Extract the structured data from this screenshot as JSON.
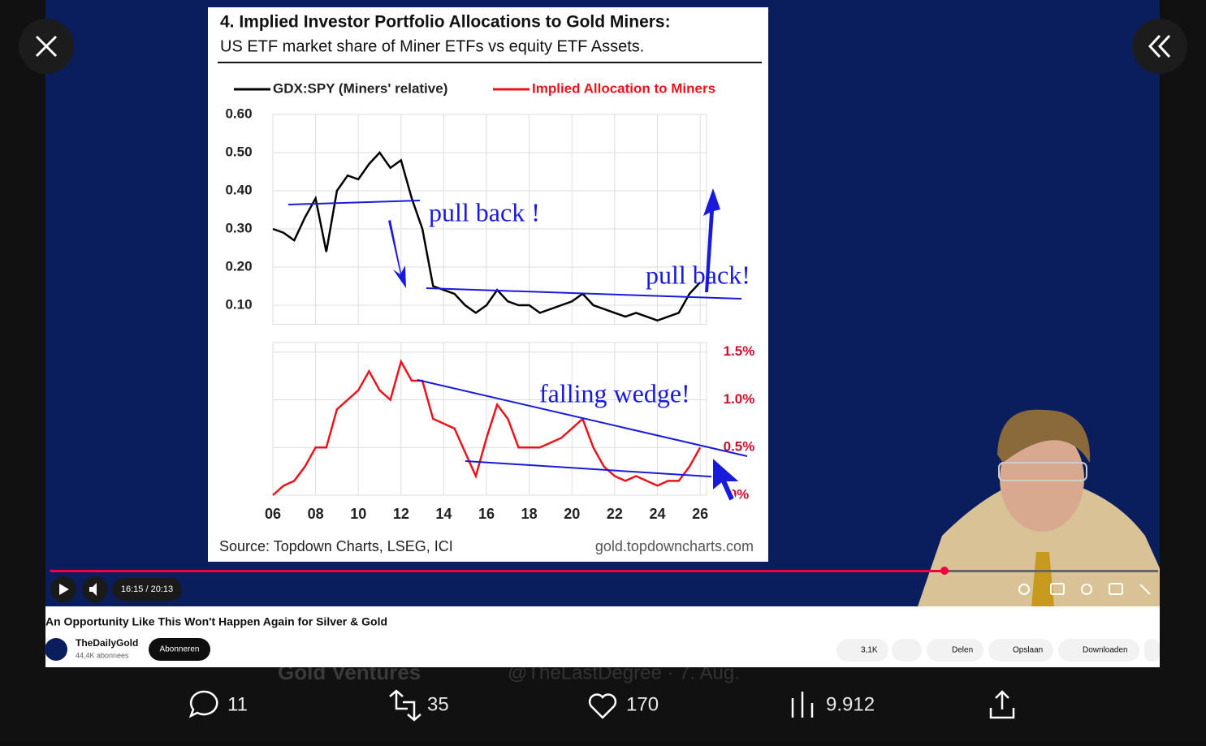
{
  "chart_data": [
    {
      "type": "line",
      "title": "4. Implied Investor Portfolio Allocations to Gold Miners:",
      "subtitle": "US ETF market share of Miner ETFs vs equity ETF Assets.",
      "source": "Source: Topdown Charts, LSEG, ICI",
      "credit": "gold.topdowncharts.com",
      "annotations": [
        "pull back !",
        "pull back!",
        "falling wedge!"
      ],
      "x": [
        2006,
        2006.5,
        2007,
        2007.5,
        2008,
        2008.5,
        2009,
        2009.5,
        2010,
        2010.5,
        2011,
        2011.5,
        2012,
        2012.5,
        2013,
        2013.5,
        2014,
        2014.5,
        2015,
        2015.5,
        2016,
        2016.5,
        2017,
        2017.5,
        2018,
        2018.5,
        2019,
        2019.5,
        2020,
        2020.5,
        2021,
        2021.5,
        2022,
        2022.5,
        2023,
        2023.5,
        2024,
        2024.5,
        2025,
        2025.5,
        2026
      ],
      "series": [
        {
          "name": "GDX:SPY (Miners' relative)",
          "color": "#000000",
          "values": [
            0.3,
            0.29,
            0.27,
            0.33,
            0.38,
            0.24,
            0.4,
            0.44,
            0.43,
            0.47,
            0.5,
            0.46,
            0.48,
            0.38,
            0.3,
            0.15,
            0.14,
            0.13,
            0.1,
            0.08,
            0.1,
            0.14,
            0.11,
            0.1,
            0.1,
            0.08,
            0.09,
            0.1,
            0.11,
            0.13,
            0.1,
            0.09,
            0.08,
            0.07,
            0.08,
            0.07,
            0.06,
            0.07,
            0.08,
            0.13,
            0.16
          ]
        }
      ],
      "xlim": [
        2006,
        2026.3
      ],
      "xticks": [
        2006,
        2008,
        2010,
        2012,
        2014,
        2016,
        2018,
        2020,
        2022,
        2024,
        2026
      ],
      "ylim": [
        0.05,
        0.6
      ],
      "yticks": [
        {
          "value": 0.1,
          "label": "0.10"
        },
        {
          "value": 0.2,
          "label": "0.20"
        },
        {
          "value": 0.3,
          "label": "0.30"
        },
        {
          "value": 0.4,
          "label": "0.40"
        },
        {
          "value": 0.5,
          "label": "0.50"
        },
        {
          "value": 0.6,
          "label": "0.60"
        }
      ],
      "grid": true
    },
    {
      "type": "line",
      "x": [
        2006,
        2006.5,
        2007,
        2007.5,
        2008,
        2008.5,
        2009,
        2009.5,
        2010,
        2010.5,
        2011,
        2011.5,
        2012,
        2012.5,
        2013,
        2013.5,
        2014,
        2014.5,
        2015,
        2015.5,
        2016,
        2016.5,
        2017,
        2017.5,
        2018,
        2018.5,
        2019,
        2019.5,
        2020,
        2020.5,
        2021,
        2021.5,
        2022,
        2022.5,
        2023,
        2023.5,
        2024,
        2024.5,
        2025,
        2025.5,
        2026
      ],
      "series": [
        {
          "name": "Implied Allocation to Miners",
          "color": "#e8141c",
          "values": [
            0.0,
            0.1,
            0.15,
            0.3,
            0.5,
            0.5,
            0.9,
            1.0,
            1.1,
            1.3,
            1.1,
            1.0,
            1.4,
            1.2,
            1.2,
            0.8,
            0.75,
            0.7,
            0.45,
            0.2,
            0.6,
            0.95,
            0.8,
            0.5,
            0.5,
            0.5,
            0.55,
            0.6,
            0.7,
            0.8,
            0.5,
            0.3,
            0.2,
            0.15,
            0.2,
            0.15,
            0.1,
            0.15,
            0.15,
            0.3,
            0.5
          ]
        }
      ],
      "xlim": [
        2006,
        2026.3
      ],
      "xticks": [
        {
          "value": 2006,
          "label": "06"
        },
        {
          "value": 2008,
          "label": "08"
        },
        {
          "value": 2010,
          "label": "10"
        },
        {
          "value": 2012,
          "label": "12"
        },
        {
          "value": 2014,
          "label": "14"
        },
        {
          "value": 2016,
          "label": "16"
        },
        {
          "value": 2018,
          "label": "18"
        },
        {
          "value": 2020,
          "label": "20"
        },
        {
          "value": 2022,
          "label": "22"
        },
        {
          "value": 2024,
          "label": "24"
        },
        {
          "value": 2026,
          "label": "26"
        }
      ],
      "ylim": [
        0,
        1.6
      ],
      "yticks": [
        {
          "value": 0,
          "label": "0%"
        },
        {
          "value": 0.5,
          "label": "0.5%"
        },
        {
          "value": 1.0,
          "label": "1.0%"
        },
        {
          "value": 1.5,
          "label": "1.5%"
        }
      ],
      "grid": true
    }
  ],
  "player": {
    "time": "16:15 / 20:13"
  },
  "video": {
    "title": "An Opportunity Like This Won't Happen Again for Silver & Gold",
    "channel": "TheDailyGold",
    "subscribers": "44,4K abonnees",
    "subscribe": "Abonneren",
    "likes": "3,1K",
    "share": "Delen",
    "save": "Opslaan",
    "download": "Downloaden"
  },
  "background_post": {
    "author": "Gold Ventures",
    "handle": "@TheLastDegree · 7. Aug."
  },
  "actions": {
    "replies": "11",
    "reposts": "35",
    "likes": "170",
    "views": "9.912"
  }
}
